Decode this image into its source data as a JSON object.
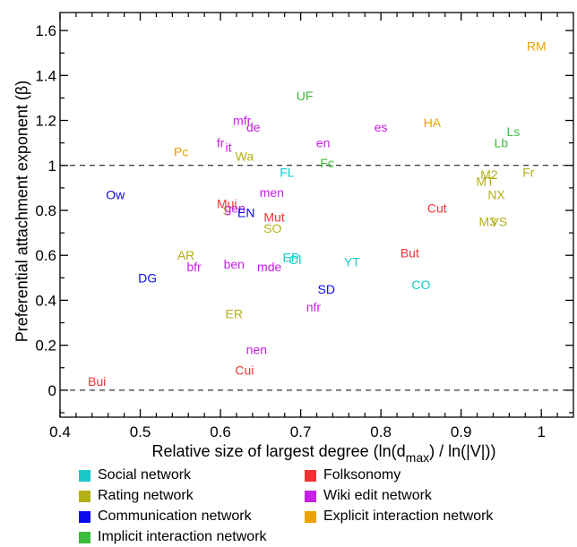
{
  "chart_data": {
    "type": "scatter",
    "xlabel": "Relative size of largest degree (ln(d_max) / ln(|V|))",
    "ylabel": "Preferential attachment exponent (β)",
    "xlim": [
      0.4,
      1.04
    ],
    "ylim": [
      -0.12,
      1.68
    ],
    "x_ticks": [
      0.4,
      0.5,
      0.6,
      0.7,
      0.8,
      0.9,
      1
    ],
    "x_tick_labels": [
      "0.4",
      "0.5",
      "0.6",
      "0.7",
      "0.8",
      "0.9",
      "1"
    ],
    "y_ticks": [
      0,
      0.2,
      0.4,
      0.6,
      0.8,
      1,
      1.2,
      1.4,
      1.6
    ],
    "y_tick_labels": [
      "0",
      "0.2",
      "0.4",
      "0.6",
      "0.8",
      "1",
      "1.2",
      "1.4",
      "1.6"
    ],
    "reference_lines": [
      0,
      1
    ],
    "categories": [
      {
        "name": "Social network",
        "color": "#1ac8c8"
      },
      {
        "name": "Rating network",
        "color": "#b4b018"
      },
      {
        "name": "Communication network",
        "color": "#0a0aee"
      },
      {
        "name": "Implicit interaction network",
        "color": "#3cbc3c"
      },
      {
        "name": "Folksonomy",
        "color": "#ee3434"
      },
      {
        "name": "Wiki edit network",
        "color": "#c81ee6"
      },
      {
        "name": "Explicit interaction network",
        "color": "#eca200"
      }
    ],
    "points": [
      {
        "label": "RM",
        "x": 0.994,
        "y": 1.53,
        "category": 6
      },
      {
        "label": "UF",
        "x": 0.705,
        "y": 1.31,
        "category": 3
      },
      {
        "label": "HA",
        "x": 0.864,
        "y": 1.19,
        "category": 6
      },
      {
        "label": "Ls",
        "x": 0.965,
        "y": 1.15,
        "category": 3
      },
      {
        "label": "Lb",
        "x": 0.95,
        "y": 1.1,
        "category": 3
      },
      {
        "label": "es",
        "x": 0.8,
        "y": 1.17,
        "category": 5
      },
      {
        "label": "mfr",
        "x": 0.627,
        "y": 1.2,
        "category": 5
      },
      {
        "label": "de",
        "x": 0.641,
        "y": 1.17,
        "category": 5
      },
      {
        "label": "fr",
        "x": 0.6,
        "y": 1.1,
        "category": 5
      },
      {
        "label": "it",
        "x": 0.61,
        "y": 1.08,
        "category": 5
      },
      {
        "label": "en",
        "x": 0.728,
        "y": 1.1,
        "category": 5
      },
      {
        "label": "Pc",
        "x": 0.551,
        "y": 1.06,
        "category": 6
      },
      {
        "label": "Wa",
        "x": 0.63,
        "y": 1.04,
        "category": 1
      },
      {
        "label": "Fc",
        "x": 0.733,
        "y": 1.01,
        "category": 3
      },
      {
        "label": "FL",
        "x": 0.683,
        "y": 0.97,
        "category": 0
      },
      {
        "label": "Fr",
        "x": 0.984,
        "y": 0.97,
        "category": 1
      },
      {
        "label": "M2",
        "x": 0.935,
        "y": 0.96,
        "category": 1
      },
      {
        "label": "MT",
        "x": 0.93,
        "y": 0.93,
        "category": 1
      },
      {
        "label": "NX",
        "x": 0.944,
        "y": 0.87,
        "category": 1
      },
      {
        "label": "Ow",
        "x": 0.469,
        "y": 0.87,
        "category": 2
      },
      {
        "label": "men",
        "x": 0.664,
        "y": 0.88,
        "category": 5
      },
      {
        "label": "Mui",
        "x": 0.608,
        "y": 0.83,
        "category": 4
      },
      {
        "label": "Cut",
        "x": 0.87,
        "y": 0.81,
        "category": 4
      },
      {
        "label": "S",
        "x": 0.608,
        "y": 0.8,
        "category": 1
      },
      {
        "label": "gen",
        "x": 0.618,
        "y": 0.81,
        "category": 5
      },
      {
        "label": "EN",
        "x": 0.632,
        "y": 0.79,
        "category": 2
      },
      {
        "label": "Mut",
        "x": 0.667,
        "y": 0.77,
        "category": 4
      },
      {
        "label": "M3",
        "x": 0.933,
        "y": 0.75,
        "category": 1
      },
      {
        "label": "VS",
        "x": 0.947,
        "y": 0.75,
        "category": 1
      },
      {
        "label": "SO",
        "x": 0.665,
        "y": 0.72,
        "category": 1
      },
      {
        "label": "AR",
        "x": 0.557,
        "y": 0.6,
        "category": 1
      },
      {
        "label": "EP",
        "x": 0.688,
        "y": 0.59,
        "category": 0
      },
      {
        "label": "Ol",
        "x": 0.693,
        "y": 0.58,
        "category": 0
      },
      {
        "label": "But",
        "x": 0.836,
        "y": 0.61,
        "category": 4
      },
      {
        "label": "YT",
        "x": 0.764,
        "y": 0.57,
        "category": 0
      },
      {
        "label": "bfr",
        "x": 0.567,
        "y": 0.55,
        "category": 5
      },
      {
        "label": "ben",
        "x": 0.617,
        "y": 0.56,
        "category": 5
      },
      {
        "label": "mde",
        "x": 0.661,
        "y": 0.55,
        "category": 5
      },
      {
        "label": "DG",
        "x": 0.509,
        "y": 0.5,
        "category": 2
      },
      {
        "label": "CO",
        "x": 0.85,
        "y": 0.47,
        "category": 0
      },
      {
        "label": "SD",
        "x": 0.732,
        "y": 0.45,
        "category": 2
      },
      {
        "label": "nfr",
        "x": 0.716,
        "y": 0.37,
        "category": 5
      },
      {
        "label": "ER",
        "x": 0.617,
        "y": 0.34,
        "category": 1
      },
      {
        "label": "nen",
        "x": 0.645,
        "y": 0.18,
        "category": 5
      },
      {
        "label": "Cui",
        "x": 0.63,
        "y": 0.09,
        "category": 4
      },
      {
        "label": "Bui",
        "x": 0.446,
        "y": 0.04,
        "category": 4
      }
    ]
  }
}
